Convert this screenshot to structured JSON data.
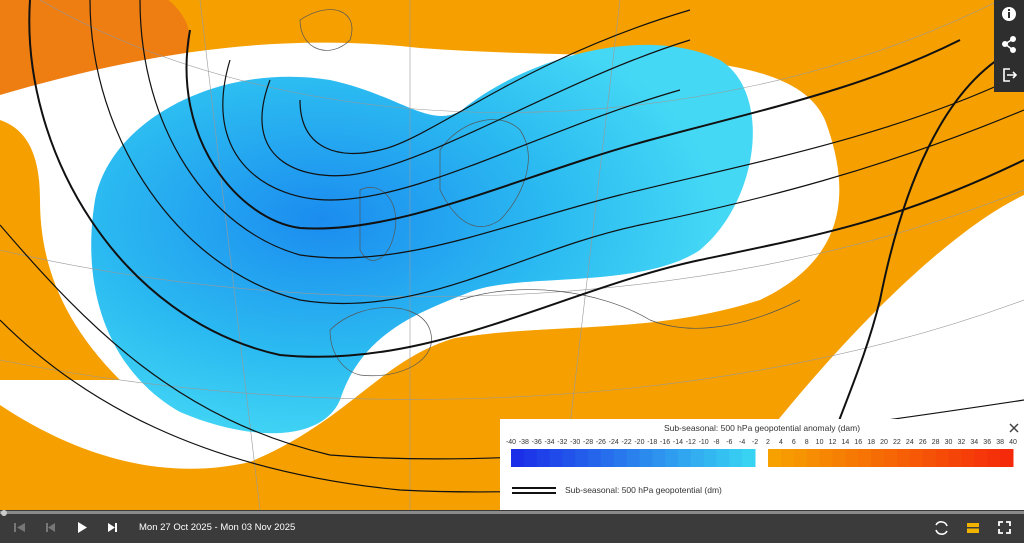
{
  "legend": {
    "title": "Sub-seasonal: 500 hPa geopotential anomaly (dam)",
    "negative_ticks": [
      -40,
      -38,
      -36,
      -34,
      -32,
      -30,
      -28,
      -26,
      -24,
      -22,
      -20,
      -18,
      -16,
      -14,
      -12,
      -10,
      -8,
      -6,
      -4,
      -2
    ],
    "positive_ticks": [
      2,
      4,
      6,
      8,
      10,
      12,
      14,
      16,
      18,
      20,
      22,
      24,
      26,
      28,
      30,
      32,
      34,
      36,
      38,
      40
    ],
    "negative_colors": [
      "#1b2fe8",
      "#38d2f3"
    ],
    "positive_colors": [
      "#f7a100",
      "#f52a0a"
    ],
    "line_label": "Sub-seasonal: 500 hPa geopotential (dm)"
  },
  "timebar": {
    "date_range": "Mon 27 Oct 2025 - Mon 03 Nov 2025"
  }
}
